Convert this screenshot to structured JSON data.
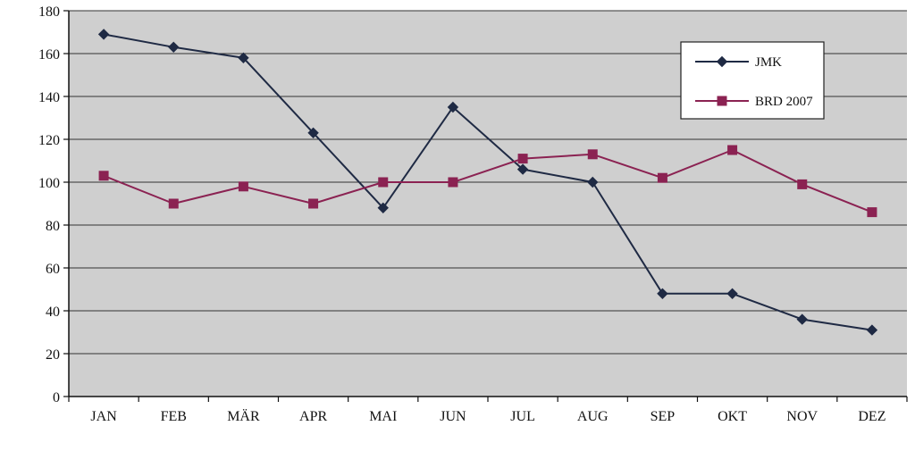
{
  "chart_data": {
    "type": "line",
    "title": "",
    "xlabel": "",
    "ylabel": "",
    "categories": [
      "JAN",
      "FEB",
      "MÄR",
      "APR",
      "MAI",
      "JUN",
      "JUL",
      "AUG",
      "SEP",
      "OKT",
      "NOV",
      "DEZ"
    ],
    "ylim": [
      0,
      180
    ],
    "yticks": [
      0,
      20,
      40,
      60,
      80,
      100,
      120,
      140,
      160,
      180
    ],
    "grid": true,
    "legend_position": "top-right",
    "plot_background": "#cfcfcf",
    "series": [
      {
        "name": "JMK",
        "color": "#1f2a44",
        "marker": "diamond",
        "values": [
          169,
          163,
          158,
          123,
          88,
          135,
          106,
          100,
          48,
          48,
          36,
          31
        ]
      },
      {
        "name": "BRD 2007",
        "color": "#8b2252",
        "marker": "square",
        "values": [
          103,
          90,
          98,
          90,
          100,
          100,
          111,
          113,
          102,
          115,
          99,
          86
        ]
      }
    ]
  }
}
